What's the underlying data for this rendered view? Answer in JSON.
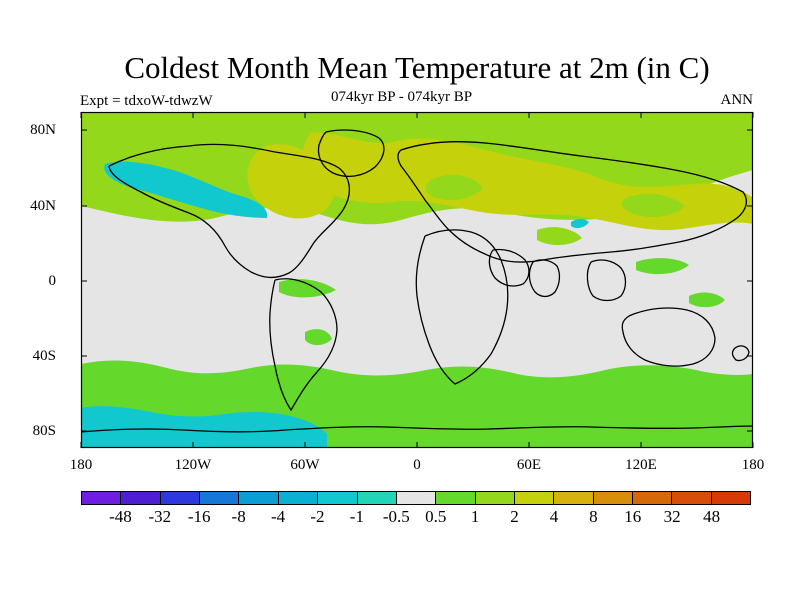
{
  "header": {
    "title": "Coldest Month Mean Temperature at 2m (in C)",
    "left_label": "Expt = tdxoW-tdwzW",
    "center_label": "074kyr BP - 074kyr BP",
    "right_label": "ANN"
  },
  "axes": {
    "y_ticks": [
      "80N",
      "40N",
      "0",
      "40S",
      "80S"
    ],
    "x_ticks": [
      "180",
      "120W",
      "60W",
      "0",
      "60E",
      "120E",
      "180"
    ]
  },
  "colorbar": {
    "labels": [
      "-48",
      "-32",
      "-16",
      "-8",
      "-4",
      "-2",
      "-1",
      "-0.5",
      "0.5",
      "1",
      "2",
      "4",
      "8",
      "16",
      "32",
      "48"
    ],
    "colors": [
      "#6f1de0",
      "#4d1ed4",
      "#2d39dc",
      "#1578d8",
      "#0a9ed2",
      "#0ab0d1",
      "#12c8cf",
      "#21d6b6",
      "#e5e5e5",
      "#64d92c",
      "#93d81b",
      "#c5d20b",
      "#d7b10d",
      "#d78f0a",
      "#d66809",
      "#d64e08",
      "#d73a06"
    ]
  },
  "map": {
    "background_color": "#e5e5e5",
    "regions": [
      {
        "name": "north-polar-band",
        "color": "#93d81b"
      },
      {
        "name": "siberia-warm-zone",
        "color": "#c5d20b"
      },
      {
        "name": "north-america-warm-zone",
        "color": "#c5d20b"
      },
      {
        "name": "north-pacific-cool-zone",
        "color": "#12c8cf"
      },
      {
        "name": "southern-cool-band",
        "color": "#12c8cf"
      },
      {
        "name": "southern-green-band",
        "color": "#64d92c"
      }
    ]
  }
}
